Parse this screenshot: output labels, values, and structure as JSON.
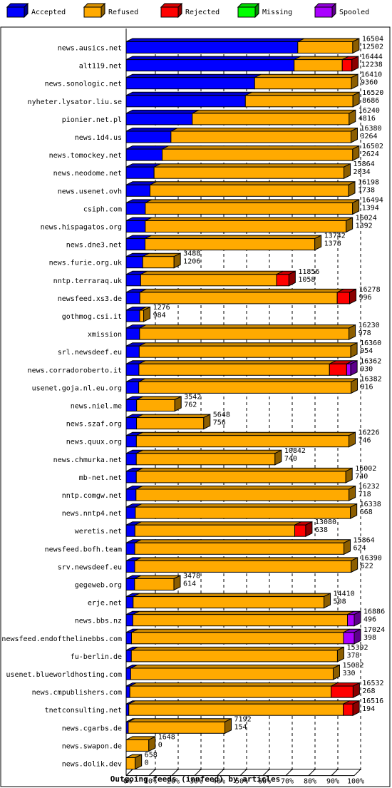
{
  "chart_data": {
    "type": "bar",
    "stacked": true,
    "orientation": "horizontal",
    "xlabel": "Outgoing feeds (innfeed) by articles",
    "xlim": [
      0,
      100
    ],
    "x_ticks": [
      "0%",
      "10%",
      "20%",
      "30%",
      "40%",
      "50%",
      "60%",
      "70%",
      "80%",
      "90%",
      "100%"
    ],
    "legend_position": "top",
    "legend": [
      {
        "name": "Accepted",
        "color": "#0000ff"
      },
      {
        "name": "Refused",
        "color": "#ffaa00"
      },
      {
        "name": "Rejected",
        "color": "#ff0000"
      },
      {
        "name": "Missing",
        "color": "#00ff00"
      },
      {
        "name": "Spooled",
        "color": "#aa00ff"
      }
    ],
    "categories": [
      "news.ausics.net",
      "alt119.net",
      "news.sonologic.net",
      "nyheter.lysator.liu.se",
      "pionier.net.pl",
      "news.1d4.us",
      "news.tomockey.net",
      "news.neodome.net",
      "news.usenet.ovh",
      "csiph.com",
      "news.hispagatos.org",
      "news.dne3.net",
      "news.furie.org.uk",
      "nntp.terraraq.uk",
      "newsfeed.xs3.de",
      "gothmog.csi.it",
      "xmission",
      "srl.newsdeef.eu",
      "news.corradoroberto.it",
      "usenet.goja.nl.eu.org",
      "news.niel.me",
      "news.szaf.org",
      "news.quux.org",
      "news.chmurka.net",
      "mb-net.net",
      "nntp.comgw.net",
      "news.nntp4.net",
      "weretis.net",
      "newsfeed.bofh.team",
      "srv.newsdeef.eu",
      "gegeweb.org",
      "erje.net",
      "news.bbs.nz",
      "newsfeed.endofthelinebbs.com",
      "fu-berlin.de",
      "usenet.blueworldhosting.com",
      "news.cmpublishers.com",
      "tnetconsulting.net",
      "news.cgarbs.de",
      "news.swapon.de",
      "news.dolik.dev"
    ],
    "offered": [
      16504,
      16444,
      16410,
      16520,
      16240,
      16380,
      16502,
      15864,
      16198,
      16494,
      16024,
      13742,
      3488,
      11856,
      16278,
      1276,
      16230,
      16360,
      16362,
      16382,
      3542,
      5648,
      16226,
      10842,
      16002,
      16232,
      16338,
      13080,
      15864,
      16390,
      3478,
      14410,
      16886,
      17024,
      15392,
      15082,
      16532,
      16516,
      7192,
      1648,
      658
    ],
    "accepted": [
      12502,
      12238,
      9360,
      8686,
      4816,
      3264,
      2624,
      2034,
      1738,
      1394,
      1392,
      1378,
      1206,
      1058,
      996,
      984,
      978,
      954,
      930,
      916,
      762,
      756,
      746,
      740,
      740,
      718,
      668,
      638,
      624,
      622,
      614,
      508,
      496,
      398,
      378,
      330,
      268,
      194,
      154,
      0,
      0
    ],
    "rejected": [
      0,
      700,
      0,
      0,
      0,
      0,
      0,
      0,
      0,
      0,
      0,
      0,
      0,
      900,
      900,
      0,
      0,
      0,
      1250,
      0,
      0,
      0,
      0,
      0,
      0,
      0,
      0,
      800,
      0,
      0,
      0,
      0,
      0,
      0,
      0,
      0,
      1600,
      700,
      0,
      0,
      0
    ],
    "spooled": [
      0,
      0,
      0,
      0,
      0,
      0,
      0,
      0,
      0,
      0,
      0,
      0,
      0,
      0,
      0,
      0,
      0,
      0,
      300,
      0,
      0,
      0,
      0,
      0,
      0,
      0,
      0,
      0,
      0,
      0,
      0,
      0,
      500,
      800,
      0,
      0,
      0,
      0,
      0,
      0,
      0
    ]
  }
}
